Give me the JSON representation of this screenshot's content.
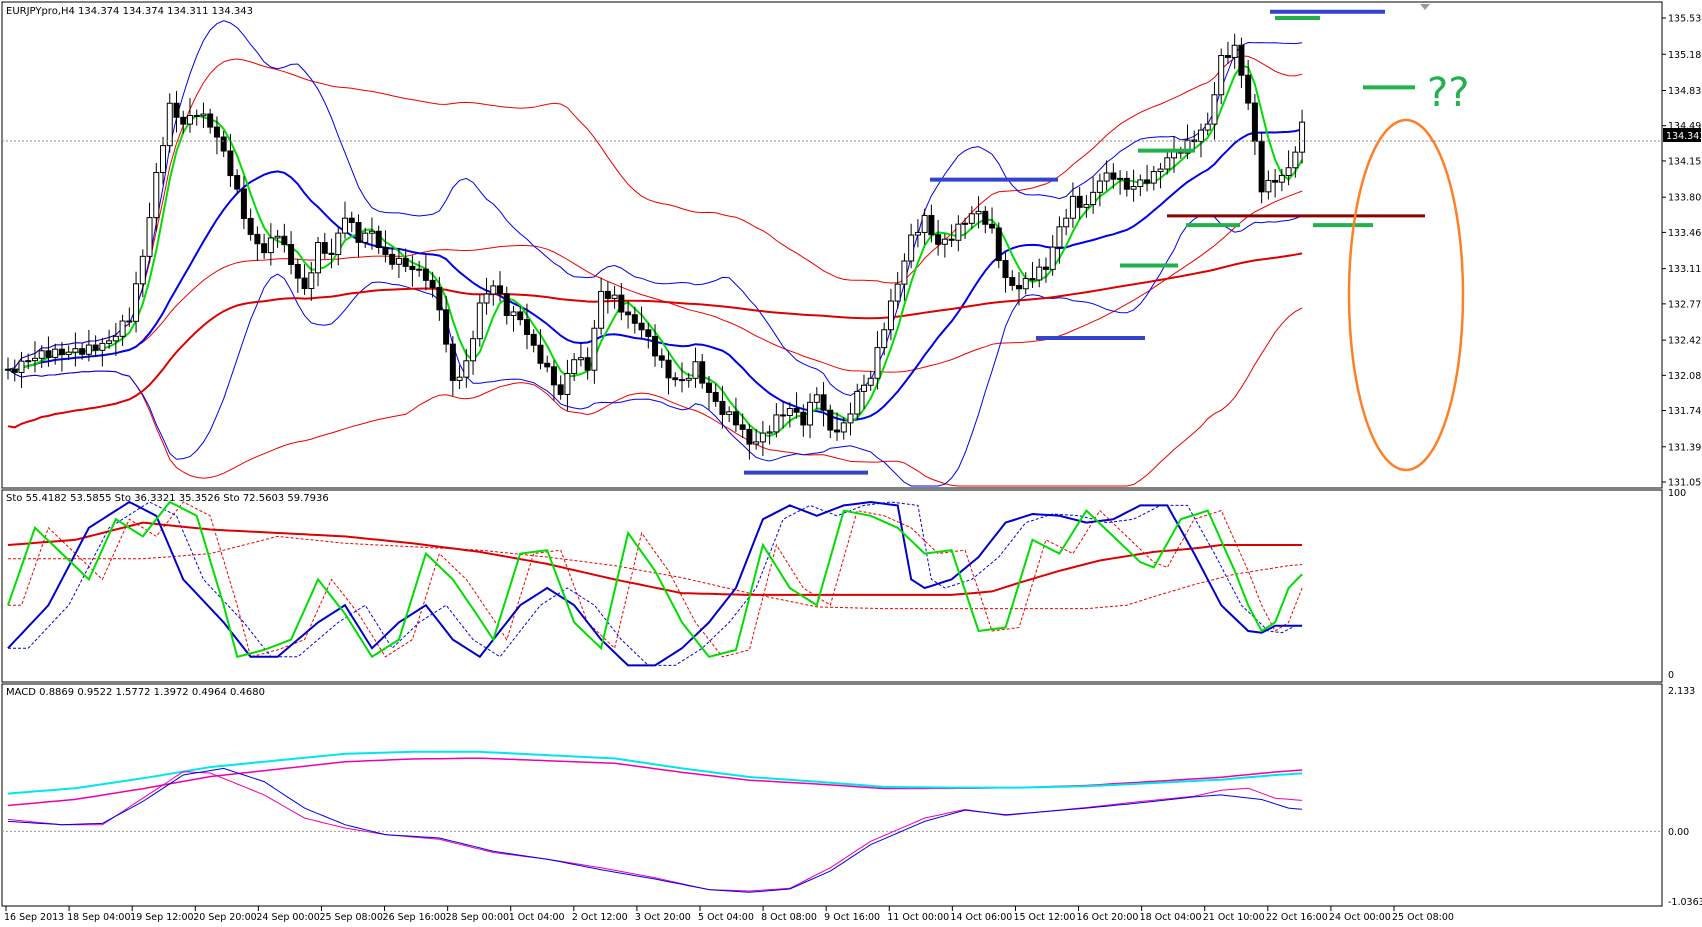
{
  "window": {
    "symbol_line": "EURJPYpro,H4  134.374 134.374 134.311 134.343",
    "current_price": "134.343",
    "annotation": "??"
  },
  "colors": {
    "bull_candle": "#ffffff",
    "bear_candle": "#000000",
    "ma_green": "#00dd00",
    "ma_blue": "#0000cc",
    "band_red": "#ee0000",
    "band_blue": "#0000ee",
    "ma200_red": "#dd0000",
    "macd_main": "#00e5ee",
    "macd_signal": "#ee00aa",
    "hline_blue": "#3344cc",
    "hline_green": "#22b14c",
    "hline_darkred": "#8b0000",
    "ellipse_orange": "#ff7f27"
  },
  "price_axis": {
    "ticks": [
      "135.530",
      "135.180",
      "134.830",
      "134.490",
      "134.150",
      "133.800",
      "133.460",
      "133.110",
      "132.770",
      "132.420",
      "132.080",
      "131.740",
      "131.390",
      "131.050"
    ],
    "min": 131.05,
    "max": 135.53
  },
  "stoch_pane": {
    "label": "Sto 55.4182 53.5855  Sto 36.3321 35.3526  Sto 72.5603 59.7936",
    "ticks": [
      "100",
      "0"
    ],
    "min": 0,
    "max": 100
  },
  "macd_pane": {
    "label": "MACD 0.8869 0.9522 1.5772 1.3972 0.4964 0.4680",
    "ticks": [
      "2.133",
      "0.00",
      "-1.0363"
    ],
    "min": -1.0363,
    "max": 2.133
  },
  "time_axis": {
    "labels": [
      "16 Sep 2013",
      "18 Sep 04:00",
      "19 Sep 12:00",
      "20 Sep 20:00",
      "24 Sep 00:00",
      "25 Sep 08:00",
      "26 Sep 16:00",
      "28 Sep 00:00",
      "1 Oct 04:00",
      "2 Oct 12:00",
      "3 Oct 20:00",
      "5 Oct 04:00",
      "8 Oct 08:00",
      "9 Oct 16:00",
      "11 Oct 00:00",
      "14 Oct 06:00",
      "15 Oct 12:00",
      "16 Oct 20:00",
      "18 Oct 04:00",
      "21 Oct 10:00",
      "22 Oct 16:00",
      "24 Oct 00:00",
      "25 Oct 08:00"
    ]
  },
  "chart_data": {
    "type": "candlestick",
    "title": "EURJPYpro,H4",
    "anchors": [
      [
        0,
        132.1
      ],
      [
        5,
        132.25
      ],
      [
        10,
        132.35
      ],
      [
        15,
        132.4
      ],
      [
        18,
        132.6
      ],
      [
        20,
        133.2
      ],
      [
        22,
        134.0
      ],
      [
        24,
        134.7
      ],
      [
        26,
        134.55
      ],
      [
        28,
        134.65
      ],
      [
        30,
        134.5
      ],
      [
        32,
        134.2
      ],
      [
        34,
        133.8
      ],
      [
        36,
        133.4
      ],
      [
        38,
        133.3
      ],
      [
        40,
        133.5
      ],
      [
        42,
        133.2
      ],
      [
        44,
        132.9
      ],
      [
        46,
        133.3
      ],
      [
        48,
        133.2
      ],
      [
        50,
        133.6
      ],
      [
        52,
        133.4
      ],
      [
        54,
        133.5
      ],
      [
        56,
        133.25
      ],
      [
        58,
        133.2
      ],
      [
        60,
        133.1
      ],
      [
        62,
        133.0
      ],
      [
        64,
        132.7
      ],
      [
        66,
        132.0
      ],
      [
        68,
        132.2
      ],
      [
        70,
        132.8
      ],
      [
        72,
        133.0
      ],
      [
        74,
        132.7
      ],
      [
        76,
        132.6
      ],
      [
        78,
        132.3
      ],
      [
        80,
        132.1
      ],
      [
        82,
        131.9
      ],
      [
        84,
        132.3
      ],
      [
        86,
        132.2
      ],
      [
        88,
        132.9
      ],
      [
        90,
        132.8
      ],
      [
        92,
        132.6
      ],
      [
        94,
        132.5
      ],
      [
        96,
        132.3
      ],
      [
        98,
        132.1
      ],
      [
        100,
        132.05
      ],
      [
        102,
        132.2
      ],
      [
        104,
        131.9
      ],
      [
        106,
        131.7
      ],
      [
        108,
        131.6
      ],
      [
        110,
        131.4
      ],
      [
        112,
        131.5
      ],
      [
        114,
        131.7
      ],
      [
        116,
        131.8
      ],
      [
        118,
        131.65
      ],
      [
        120,
        131.9
      ],
      [
        122,
        131.5
      ],
      [
        124,
        131.55
      ],
      [
        126,
        131.9
      ],
      [
        128,
        132.1
      ],
      [
        130,
        132.6
      ],
      [
        132,
        133.0
      ],
      [
        134,
        133.4
      ],
      [
        136,
        133.55
      ],
      [
        138,
        133.3
      ],
      [
        140,
        133.4
      ],
      [
        142,
        133.6
      ],
      [
        144,
        133.7
      ],
      [
        146,
        133.5
      ],
      [
        148,
        133.0
      ],
      [
        150,
        132.9
      ],
      [
        152,
        133.0
      ],
      [
        154,
        133.1
      ],
      [
        156,
        133.5
      ],
      [
        158,
        133.8
      ],
      [
        160,
        133.75
      ],
      [
        162,
        134.0
      ],
      [
        164,
        134.0
      ],
      [
        166,
        133.85
      ],
      [
        168,
        133.9
      ],
      [
        170,
        134.0
      ],
      [
        172,
        134.2
      ],
      [
        174,
        134.3
      ],
      [
        176,
        134.4
      ],
      [
        178,
        134.5
      ],
      [
        180,
        135.1
      ],
      [
        182,
        135.2
      ],
      [
        184,
        134.7
      ],
      [
        186,
        133.9
      ],
      [
        188,
        134.0
      ],
      [
        190,
        134.1
      ],
      [
        192,
        134.5
      ],
      [
        194,
        134.35
      ],
      [
        196,
        134.34
      ]
    ],
    "stoch_fast_anchors": [
      [
        0,
        40
      ],
      [
        4,
        85
      ],
      [
        8,
        70
      ],
      [
        12,
        55
      ],
      [
        16,
        90
      ],
      [
        20,
        80
      ],
      [
        24,
        100
      ],
      [
        28,
        92
      ],
      [
        32,
        40
      ],
      [
        34,
        10
      ],
      [
        38,
        14
      ],
      [
        42,
        20
      ],
      [
        46,
        55
      ],
      [
        50,
        35
      ],
      [
        54,
        10
      ],
      [
        58,
        20
      ],
      [
        62,
        70
      ],
      [
        66,
        55
      ],
      [
        70,
        32
      ],
      [
        72,
        20
      ],
      [
        76,
        70
      ],
      [
        80,
        72
      ],
      [
        84,
        30
      ],
      [
        88,
        15
      ],
      [
        92,
        82
      ],
      [
        96,
        60
      ],
      [
        100,
        30
      ],
      [
        104,
        10
      ],
      [
        108,
        14
      ],
      [
        112,
        75
      ],
      [
        116,
        50
      ],
      [
        120,
        40
      ],
      [
        124,
        95
      ],
      [
        128,
        92
      ],
      [
        132,
        85
      ],
      [
        136,
        70
      ],
      [
        140,
        72
      ],
      [
        144,
        25
      ],
      [
        148,
        27
      ],
      [
        152,
        78
      ],
      [
        156,
        70
      ],
      [
        160,
        95
      ],
      [
        164,
        80
      ],
      [
        168,
        65
      ],
      [
        170,
        62
      ],
      [
        174,
        90
      ],
      [
        178,
        95
      ],
      [
        182,
        60
      ],
      [
        184,
        40
      ],
      [
        186,
        25
      ],
      [
        188,
        30
      ],
      [
        190,
        50
      ],
      [
        192,
        58
      ]
    ],
    "stoch_slow_anchors": [
      [
        0,
        15
      ],
      [
        6,
        40
      ],
      [
        12,
        85
      ],
      [
        18,
        100
      ],
      [
        22,
        92
      ],
      [
        26,
        55
      ],
      [
        32,
        30
      ],
      [
        36,
        10
      ],
      [
        40,
        10
      ],
      [
        46,
        30
      ],
      [
        50,
        40
      ],
      [
        54,
        15
      ],
      [
        58,
        30
      ],
      [
        62,
        40
      ],
      [
        66,
        20
      ],
      [
        70,
        10
      ],
      [
        76,
        40
      ],
      [
        80,
        50
      ],
      [
        84,
        40
      ],
      [
        88,
        20
      ],
      [
        92,
        5
      ],
      [
        96,
        5
      ],
      [
        100,
        15
      ],
      [
        104,
        30
      ],
      [
        108,
        50
      ],
      [
        112,
        90
      ],
      [
        116,
        98
      ],
      [
        120,
        92
      ],
      [
        124,
        98
      ],
      [
        128,
        100
      ],
      [
        132,
        98
      ],
      [
        134,
        55
      ],
      [
        136,
        50
      ],
      [
        140,
        55
      ],
      [
        144,
        68
      ],
      [
        148,
        88
      ],
      [
        152,
        93
      ],
      [
        156,
        92
      ],
      [
        160,
        88
      ],
      [
        164,
        90
      ],
      [
        168,
        98
      ],
      [
        172,
        98
      ],
      [
        176,
        70
      ],
      [
        180,
        40
      ],
      [
        184,
        25
      ],
      [
        186,
        24
      ],
      [
        188,
        28
      ]
    ],
    "stoch_long_anchors": [
      [
        0,
        75
      ],
      [
        10,
        78
      ],
      [
        20,
        88
      ],
      [
        30,
        84
      ],
      [
        40,
        82
      ],
      [
        50,
        80
      ],
      [
        60,
        76
      ],
      [
        70,
        71
      ],
      [
        80,
        64
      ],
      [
        90,
        55
      ],
      [
        100,
        47
      ],
      [
        110,
        46
      ],
      [
        120,
        46
      ],
      [
        130,
        46
      ],
      [
        140,
        46
      ],
      [
        146,
        48
      ],
      [
        150,
        53
      ],
      [
        156,
        60
      ],
      [
        162,
        66
      ],
      [
        170,
        71
      ],
      [
        176,
        73
      ],
      [
        180,
        75
      ]
    ],
    "macd_main_anchors": [
      [
        0,
        0.57
      ],
      [
        10,
        0.65
      ],
      [
        20,
        0.8
      ],
      [
        30,
        0.97
      ],
      [
        40,
        1.07
      ],
      [
        50,
        1.17
      ],
      [
        60,
        1.2
      ],
      [
        70,
        1.2
      ],
      [
        80,
        1.15
      ],
      [
        90,
        1.1
      ],
      [
        100,
        0.95
      ],
      [
        110,
        0.82
      ],
      [
        120,
        0.75
      ],
      [
        130,
        0.67
      ],
      [
        140,
        0.66
      ],
      [
        150,
        0.66
      ],
      [
        160,
        0.68
      ],
      [
        170,
        0.73
      ],
      [
        180,
        0.78
      ],
      [
        188,
        0.85
      ],
      [
        196,
        0.9
      ]
    ],
    "macd_signal_anchors": [
      [
        0,
        0.15
      ],
      [
        8,
        0.1
      ],
      [
        14,
        0.12
      ],
      [
        20,
        0.45
      ],
      [
        26,
        0.85
      ],
      [
        32,
        0.95
      ],
      [
        38,
        0.75
      ],
      [
        44,
        0.35
      ],
      [
        50,
        0.1
      ],
      [
        56,
        -0.05
      ],
      [
        64,
        -0.1
      ],
      [
        72,
        -0.3
      ],
      [
        80,
        -0.42
      ],
      [
        88,
        -0.58
      ],
      [
        96,
        -0.72
      ],
      [
        104,
        -0.88
      ],
      [
        110,
        -0.92
      ],
      [
        116,
        -0.87
      ],
      [
        122,
        -0.6
      ],
      [
        128,
        -0.2
      ],
      [
        136,
        0.15
      ],
      [
        142,
        0.32
      ],
      [
        148,
        0.25
      ],
      [
        154,
        0.3
      ],
      [
        160,
        0.35
      ],
      [
        168,
        0.43
      ],
      [
        176,
        0.52
      ],
      [
        180,
        0.55
      ],
      [
        186,
        0.48
      ],
      [
        190,
        0.35
      ],
      [
        196,
        0.3
      ]
    ],
    "macd_fast_anchors": [
      [
        0,
        0.18
      ],
      [
        8,
        0.1
      ],
      [
        14,
        0.1
      ],
      [
        20,
        0.5
      ],
      [
        26,
        0.9
      ],
      [
        30,
        0.88
      ],
      [
        38,
        0.55
      ],
      [
        44,
        0.2
      ],
      [
        50,
        0.05
      ],
      [
        56,
        -0.05
      ],
      [
        64,
        -0.12
      ],
      [
        72,
        -0.32
      ],
      [
        80,
        -0.42
      ],
      [
        88,
        -0.55
      ],
      [
        96,
        -0.7
      ],
      [
        104,
        -0.88
      ],
      [
        110,
        -0.9
      ],
      [
        116,
        -0.86
      ],
      [
        122,
        -0.55
      ],
      [
        128,
        -0.15
      ],
      [
        136,
        0.2
      ],
      [
        142,
        0.33
      ],
      [
        148,
        0.24
      ],
      [
        154,
        0.3
      ],
      [
        160,
        0.36
      ],
      [
        168,
        0.45
      ],
      [
        176,
        0.53
      ],
      [
        180,
        0.62
      ],
      [
        184,
        0.65
      ],
      [
        188,
        0.5
      ],
      [
        194,
        0.45
      ],
      [
        196,
        0.4
      ]
    ]
  }
}
